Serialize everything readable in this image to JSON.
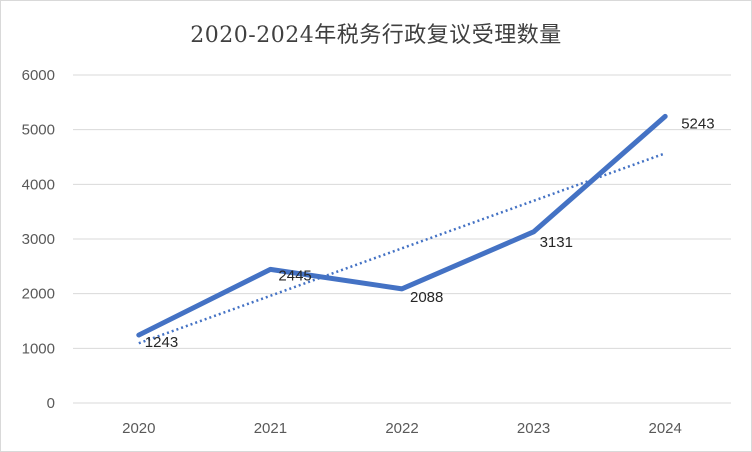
{
  "chart_data": {
    "type": "line",
    "title": "2020-2024年税务行政复议受理数量",
    "xlabel": "",
    "ylabel": "",
    "categories": [
      "2020",
      "2021",
      "2022",
      "2023",
      "2024"
    ],
    "series": [
      {
        "values": [
          1243,
          2445,
          2088,
          3131,
          5243
        ]
      }
    ],
    "trendline": {
      "type": "linear",
      "style": "dotted"
    },
    "ylim": [
      0,
      6000
    ],
    "yticks": [
      "0",
      "1000",
      "2000",
      "3000",
      "4000",
      "5000",
      "6000"
    ],
    "data_labels": [
      "1243",
      "2445",
      "2088",
      "3131",
      "5243"
    ],
    "grid": true,
    "legend": "none",
    "colors": {
      "series": "#4472c4",
      "trend": "#4472c4",
      "grid": "#d9d9d9"
    }
  }
}
